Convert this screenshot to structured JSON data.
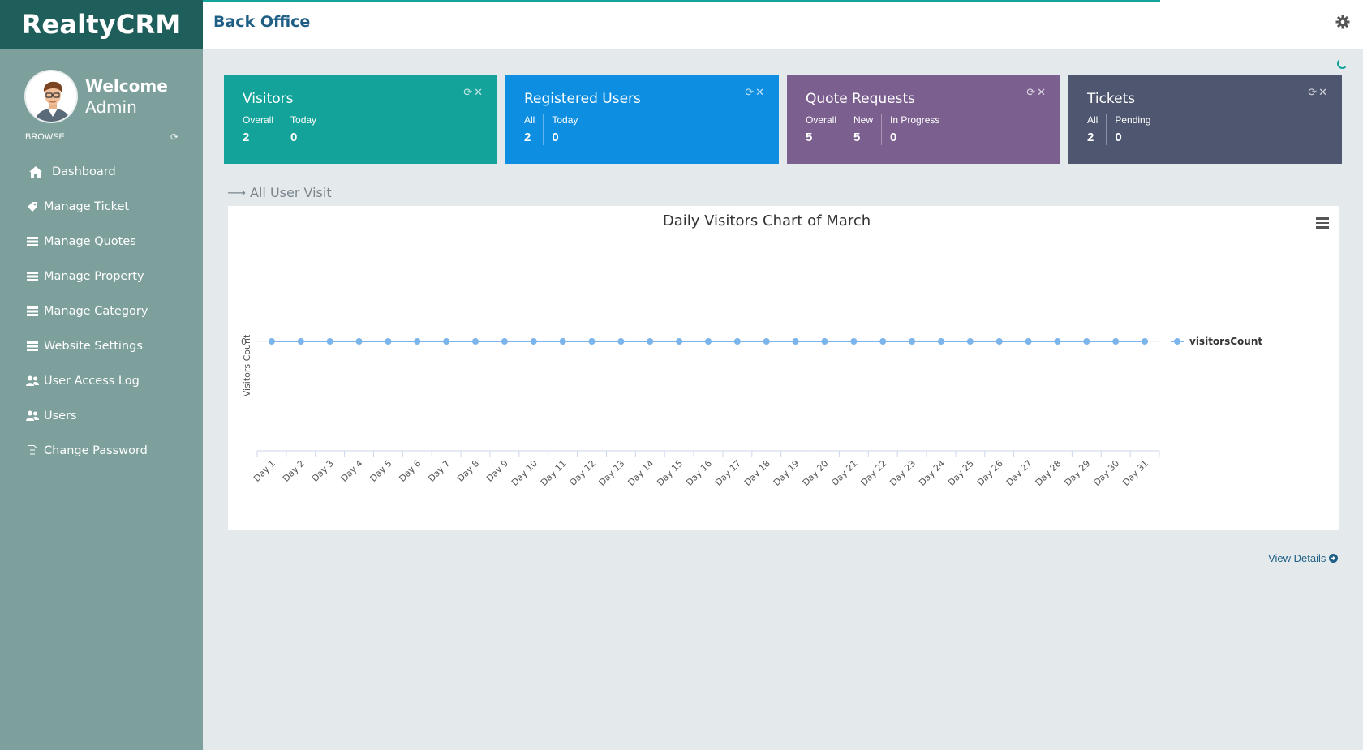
{
  "brand": "RealtyCRM",
  "profile": {
    "welcome": "Welcome",
    "name": "Admin"
  },
  "sidebar": {
    "browse_label": "BROWSE",
    "items": [
      {
        "label": "Dashboard",
        "icon": "home-icon"
      },
      {
        "label": "Manage Ticket",
        "icon": "tag-icon"
      },
      {
        "label": "Manage Quotes",
        "icon": "list-icon"
      },
      {
        "label": "Manage Property",
        "icon": "list-icon"
      },
      {
        "label": "Manage Category",
        "icon": "list-icon"
      },
      {
        "label": "Website Settings",
        "icon": "list-icon"
      },
      {
        "label": "User Access Log",
        "icon": "users-icon"
      },
      {
        "label": "Users",
        "icon": "users-icon"
      },
      {
        "label": "Change Password",
        "icon": "file-icon"
      }
    ]
  },
  "header": {
    "title": "Back Office"
  },
  "cards": [
    {
      "title": "Visitors",
      "color": "#14a39a",
      "stats": [
        {
          "label": "Overall",
          "value": "2"
        },
        {
          "label": "Today",
          "value": "0"
        }
      ]
    },
    {
      "title": "Registered Users",
      "color": "#0d8ee0",
      "stats": [
        {
          "label": "All",
          "value": "2"
        },
        {
          "label": "Today",
          "value": "0"
        }
      ]
    },
    {
      "title": "Quote Requests",
      "color": "#7b5f8f",
      "stats": [
        {
          "label": "Overall",
          "value": "5"
        },
        {
          "label": "New",
          "value": "5"
        },
        {
          "label": "In Progress",
          "value": "0"
        }
      ]
    },
    {
      "title": "Tickets",
      "color": "#4f5670",
      "stats": [
        {
          "label": "All",
          "value": "2"
        },
        {
          "label": "Pending",
          "value": "0"
        }
      ]
    }
  ],
  "section": {
    "label": "All User Visit"
  },
  "chart_data": {
    "type": "line",
    "title": "Daily Visitors Chart of March",
    "xlabel": "",
    "ylabel": "Visitors Count",
    "categories": [
      "Day 1",
      "Day 2",
      "Day 3",
      "Day 4",
      "Day 5",
      "Day 6",
      "Day 7",
      "Day 8",
      "Day 9",
      "Day 10",
      "Day 11",
      "Day 12",
      "Day 13",
      "Day 14",
      "Day 15",
      "Day 16",
      "Day 17",
      "Day 18",
      "Day 19",
      "Day 20",
      "Day 21",
      "Day 22",
      "Day 23",
      "Day 24",
      "Day 25",
      "Day 26",
      "Day 27",
      "Day 28",
      "Day 29",
      "Day 30",
      "Day 31"
    ],
    "series": [
      {
        "name": "visitorsCount",
        "values": [
          0,
          0,
          0,
          0,
          0,
          0,
          0,
          0,
          0,
          0,
          0,
          0,
          0,
          0,
          0,
          0,
          0,
          0,
          0,
          0,
          0,
          0,
          0,
          0,
          0,
          0,
          0,
          0,
          0,
          0,
          0
        ]
      }
    ],
    "yticks": [
      "0"
    ],
    "legend": "right",
    "color": "#7cb5ec"
  },
  "footer": {
    "view_details": "View Details"
  }
}
